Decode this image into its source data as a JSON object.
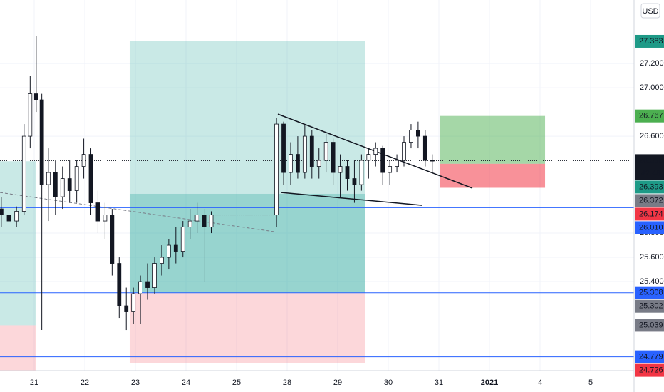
{
  "chart_data": {
    "type": "candlestick",
    "currency": "USD",
    "candle_color": "#131722",
    "x": [
      -0.65,
      -0.5,
      -0.35,
      -0.2,
      -0.08,
      0.04,
      0.15,
      0.28,
      0.42,
      0.56,
      0.7,
      0.84,
      0.98,
      1.12,
      1.26,
      1.4,
      1.54,
      1.68,
      1.82,
      1.96,
      2.1,
      2.24,
      2.38,
      2.52,
      2.66,
      2.8,
      2.94,
      3.08,
      3.22,
      3.36,
      3.5,
      4.79,
      4.93,
      5.07,
      5.21,
      5.35,
      5.49,
      5.63,
      5.77,
      5.91,
      6.05,
      6.19,
      6.33,
      6.47,
      6.61,
      6.75,
      6.89,
      7.03,
      7.17,
      7.31,
      7.45,
      7.59,
      7.73,
      7.87
    ],
    "open": [
      26.0,
      25.95,
      25.9,
      25.98,
      26.6,
      26.95,
      26.9,
      26.2,
      26.3,
      26.1,
      26.25,
      26.15,
      26.35,
      26.45,
      26.05,
      25.9,
      25.95,
      25.55,
      25.2,
      25.15,
      25.3,
      25.4,
      25.35,
      25.55,
      25.6,
      25.7,
      25.65,
      25.85,
      25.9,
      25.95,
      25.85,
      25.95,
      26.7,
      26.3,
      26.45,
      26.3,
      26.6,
      26.35,
      26.4,
      26.55,
      26.3,
      26.35,
      26.25,
      26.2,
      26.4,
      26.45,
      26.5,
      26.3,
      26.35,
      26.4,
      26.55,
      26.65,
      26.6,
      26.4
    ],
    "high": [
      26.1,
      26.05,
      26.02,
      26.7,
      27.1,
      27.43,
      26.95,
      26.5,
      26.4,
      26.35,
      26.4,
      26.4,
      26.58,
      26.5,
      26.15,
      26.05,
      26.0,
      25.6,
      25.35,
      25.35,
      25.45,
      25.55,
      25.6,
      25.7,
      25.75,
      25.85,
      25.9,
      26.0,
      26.05,
      26.0,
      25.98,
      26.75,
      26.72,
      26.55,
      26.6,
      26.7,
      26.65,
      26.5,
      26.62,
      26.58,
      26.45,
      26.4,
      26.4,
      26.45,
      26.5,
      26.55,
      26.52,
      26.4,
      26.45,
      26.6,
      26.7,
      26.72,
      26.65,
      26.45
    ],
    "low": [
      25.85,
      25.8,
      25.85,
      25.95,
      26.5,
      26.8,
      25.0,
      25.9,
      25.95,
      26.0,
      26.05,
      26.05,
      26.25,
      25.95,
      25.8,
      25.75,
      25.45,
      25.1,
      25.0,
      25.05,
      25.05,
      25.25,
      25.3,
      25.45,
      25.5,
      25.55,
      25.6,
      25.75,
      25.8,
      25.4,
      25.8,
      25.85,
      26.2,
      26.2,
      26.25,
      26.25,
      26.25,
      26.25,
      26.3,
      26.2,
      26.1,
      26.15,
      26.05,
      26.15,
      26.25,
      26.35,
      26.2,
      26.2,
      26.3,
      26.35,
      26.5,
      26.5,
      26.35,
      26.3
    ],
    "close": [
      25.95,
      25.9,
      25.98,
      26.6,
      26.95,
      26.9,
      26.2,
      26.3,
      26.1,
      26.25,
      26.15,
      26.35,
      26.45,
      26.05,
      25.9,
      25.95,
      25.55,
      25.2,
      25.15,
      25.3,
      25.4,
      25.35,
      25.55,
      25.6,
      25.7,
      25.65,
      25.85,
      25.9,
      25.95,
      25.85,
      25.95,
      26.7,
      26.3,
      26.45,
      26.3,
      26.6,
      26.35,
      26.4,
      26.55,
      26.3,
      26.35,
      26.25,
      26.2,
      26.4,
      26.45,
      26.5,
      26.3,
      26.35,
      26.4,
      26.55,
      26.65,
      26.6,
      26.4,
      26.398
    ],
    "xlim": [
      -0.676,
      11.859
    ],
    "xticks": [
      {
        "value": 0,
        "label": "21"
      },
      {
        "value": 1,
        "label": "22"
      },
      {
        "value": 2,
        "label": "23"
      },
      {
        "value": 3,
        "label": "24"
      },
      {
        "value": 4,
        "label": "25"
      },
      {
        "value": 5,
        "label": "28"
      },
      {
        "value": 6,
        "label": "29"
      },
      {
        "value": 7,
        "label": "30"
      },
      {
        "value": 8,
        "label": "31"
      },
      {
        "value": 9,
        "label": "2021",
        "bold": true
      },
      {
        "value": 10,
        "label": "4"
      },
      {
        "value": 11,
        "label": "5"
      }
    ],
    "ylim": [
      24.665,
      27.724
    ],
    "yticks": [
      {
        "value": 27.2,
        "label": "27.200"
      },
      {
        "value": 27.0,
        "label": "27.000"
      },
      {
        "value": 26.6,
        "label": "26.600"
      },
      {
        "value": 25.8,
        "label": "25.800"
      },
      {
        "value": 25.6,
        "label": "25.600"
      },
      {
        "value": 25.4,
        "label": "25.400"
      }
    ],
    "grid": true,
    "countdown": "42:48",
    "price_labels": [
      {
        "value": 27.383,
        "label": "27.383",
        "color": "#1e9a87"
      },
      {
        "value": 26.767,
        "label": "26.767",
        "color": "#4caf50"
      },
      {
        "value": 26.398,
        "label": "26.398",
        "color": "#131722",
        "line": "dotted"
      },
      {
        "value": 26.393,
        "label": "26.393",
        "color": "#1e9a87"
      },
      {
        "value": 26.372,
        "label": "26.372",
        "color": "#787b86"
      },
      {
        "value": 26.174,
        "label": "26.174",
        "color": "#f23645"
      },
      {
        "value": 26.01,
        "label": "26.010",
        "color": "#2962ff",
        "line": "solid"
      },
      {
        "value": 25.308,
        "label": "25.308",
        "color": "#2962ff",
        "line": "solid"
      },
      {
        "value": 25.302,
        "label": "25.302",
        "color": "#787b86"
      },
      {
        "value": 25.039,
        "label": "25.039",
        "color": "#787b86"
      },
      {
        "value": 24.779,
        "label": "24.779",
        "color": "#2962ff",
        "line": "solid"
      },
      {
        "value": 24.726,
        "label": "24.726",
        "color": "#f23645"
      }
    ],
    "positions": [
      {
        "x": [
          -0.676,
          0.028
        ],
        "target": 26.393,
        "entry": 25.039,
        "stop": 24.665
      },
      {
        "x": [
          1.887,
          6.549
        ],
        "target": 27.383,
        "entry": 25.308,
        "stop": 24.726,
        "reached": 26.124
      },
      {
        "x": [
          8.028,
          10.099
        ],
        "target": 26.767,
        "entry": 26.372,
        "stop": 26.174
      }
    ],
    "trendlines": [
      {
        "x": [
          4.817,
          8.662
        ],
        "y": [
          26.782,
          26.171
        ],
        "style": "solid"
      },
      {
        "x": [
          4.887,
          7.676
        ],
        "y": [
          26.135,
          26.029
        ],
        "style": "solid"
      },
      {
        "x": [
          -0.676,
          4.746
        ],
        "y": [
          26.135,
          25.812
        ],
        "style": "dashed"
      },
      {
        "x": [
          3.5,
          4.79
        ],
        "y": [
          25.95,
          25.95
        ],
        "style": "dotted"
      }
    ]
  }
}
